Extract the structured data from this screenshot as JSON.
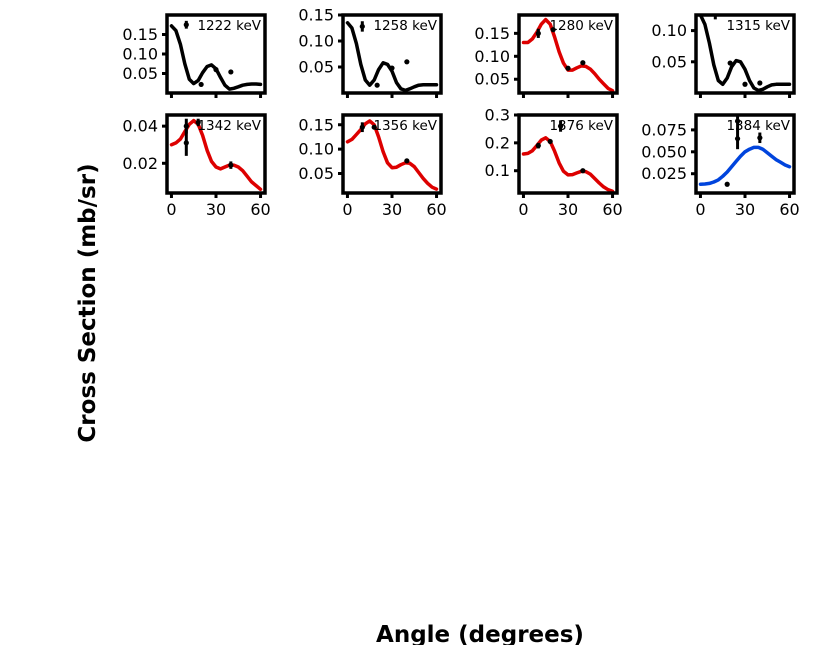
{
  "figure": {
    "xlabel": "Angle (degrees)",
    "ylabel": "Cross Section (mb/sr)"
  },
  "chart_data": [
    {
      "type": "line",
      "title": "1222 keV",
      "color": "#000000",
      "xlim": [
        -3,
        63
      ],
      "ylim": [
        0.0,
        0.2
      ],
      "yticks": [
        0.05,
        0.1,
        0.15
      ],
      "ytick_labels": [
        "0.05",
        "0.10",
        "0.15"
      ],
      "xticks": [
        0,
        30,
        60
      ],
      "xtick_labels": [],
      "curve": {
        "x": [
          0,
          3,
          6,
          9,
          12,
          15,
          18,
          21,
          24,
          27,
          30,
          33,
          36,
          39,
          42,
          45,
          48,
          51,
          54,
          57,
          60
        ],
        "y": [
          0.172,
          0.16,
          0.125,
          0.075,
          0.035,
          0.024,
          0.032,
          0.052,
          0.068,
          0.072,
          0.062,
          0.04,
          0.02,
          0.01,
          0.012,
          0.016,
          0.02,
          0.022,
          0.023,
          0.023,
          0.022
        ]
      },
      "points": [
        {
          "x": 10,
          "y": 0.175,
          "err": 0.01
        },
        {
          "x": 20,
          "y": 0.022,
          "err": 0.002
        },
        {
          "x": 30,
          "y": 0.06,
          "err": 0.002
        },
        {
          "x": 40,
          "y": 0.054,
          "err": 0.002
        }
      ]
    },
    {
      "type": "line",
      "title": "1258 keV",
      "color": "#000000",
      "xlim": [
        -3,
        63
      ],
      "ylim": [
        0.0,
        0.15
      ],
      "yticks": [
        0.05,
        0.1,
        0.15
      ],
      "ytick_labels": [
        "0.05",
        "0.10",
        "0.15"
      ],
      "xticks": [
        0,
        30,
        60
      ],
      "xtick_labels": [],
      "curve": {
        "x": [
          0,
          3,
          6,
          9,
          12,
          15,
          18,
          21,
          24,
          27,
          30,
          33,
          36,
          39,
          42,
          45,
          48,
          51,
          54,
          57,
          60
        ],
        "y": [
          0.135,
          0.125,
          0.095,
          0.055,
          0.025,
          0.015,
          0.025,
          0.045,
          0.058,
          0.055,
          0.042,
          0.02,
          0.008,
          0.005,
          0.008,
          0.012,
          0.015,
          0.016,
          0.016,
          0.016,
          0.016
        ]
      },
      "points": [
        {
          "x": 10,
          "y": 0.128,
          "err": 0.01
        },
        {
          "x": 20,
          "y": 0.015,
          "err": 0.002
        },
        {
          "x": 30,
          "y": 0.048,
          "err": 0.002
        },
        {
          "x": 40,
          "y": 0.06,
          "err": 0.002
        }
      ]
    },
    {
      "type": "line",
      "title": "1280 keV",
      "color": "#dd0000",
      "xlim": [
        -3,
        63
      ],
      "ylim": [
        0.02,
        0.19
      ],
      "yticks": [
        0.05,
        0.1,
        0.15
      ],
      "ytick_labels": [
        "0.05",
        "0.10",
        "0.15"
      ],
      "xticks": [
        0,
        30,
        60
      ],
      "xtick_labels": [],
      "curve": {
        "x": [
          0,
          3,
          6,
          9,
          12,
          15,
          18,
          21,
          24,
          27,
          30,
          33,
          36,
          39,
          42,
          45,
          48,
          51,
          54,
          57,
          60
        ],
        "y": [
          0.13,
          0.13,
          0.138,
          0.152,
          0.17,
          0.18,
          0.17,
          0.142,
          0.11,
          0.085,
          0.07,
          0.07,
          0.075,
          0.079,
          0.078,
          0.072,
          0.062,
          0.05,
          0.04,
          0.03,
          0.025
        ]
      },
      "points": [
        {
          "x": 10,
          "y": 0.15,
          "err": 0.01
        },
        {
          "x": 20,
          "y": 0.158,
          "err": 0.004
        },
        {
          "x": 30,
          "y": 0.074,
          "err": 0.003
        },
        {
          "x": 40,
          "y": 0.086,
          "err": 0.002
        }
      ]
    },
    {
      "type": "line",
      "title": "1315 keV",
      "color": "#000000",
      "xlim": [
        -3,
        63
      ],
      "ylim": [
        0.0,
        0.125
      ],
      "yticks": [
        0.05,
        0.1
      ],
      "ytick_labels": [
        "0.05",
        "0.10"
      ],
      "xticks": [
        0,
        30,
        60
      ],
      "xtick_labels": [],
      "curve": {
        "x": [
          0,
          3,
          6,
          9,
          12,
          15,
          18,
          21,
          24,
          27,
          30,
          33,
          36,
          39,
          42,
          45,
          48,
          51,
          54,
          57,
          60
        ],
        "y": [
          0.125,
          0.11,
          0.08,
          0.045,
          0.02,
          0.014,
          0.024,
          0.042,
          0.052,
          0.05,
          0.038,
          0.02,
          0.008,
          0.004,
          0.006,
          0.01,
          0.013,
          0.014,
          0.014,
          0.014,
          0.014
        ]
      },
      "points": [
        {
          "x": 10,
          "y": 0.128,
          "err": 0.01
        },
        {
          "x": 20,
          "y": 0.048,
          "err": 0.003
        },
        {
          "x": 30,
          "y": 0.014,
          "err": 0.002
        },
        {
          "x": 40,
          "y": 0.016,
          "err": 0.002
        }
      ]
    },
    {
      "type": "line",
      "title": "1342 keV",
      "color": "#dd0000",
      "xlim": [
        -3,
        63
      ],
      "ylim": [
        0.004,
        0.046
      ],
      "yticks": [
        0.02,
        0.04
      ],
      "ytick_labels": [
        "0.02",
        "0.04"
      ],
      "xticks": [
        0,
        30,
        60
      ],
      "xtick_labels": [
        "0",
        "30",
        "60"
      ],
      "curve": {
        "x": [
          0,
          3,
          6,
          9,
          12,
          15,
          18,
          21,
          24,
          27,
          30,
          33,
          36,
          39,
          42,
          45,
          48,
          51,
          54,
          57,
          60
        ],
        "y": [
          0.03,
          0.031,
          0.033,
          0.037,
          0.041,
          0.043,
          0.041,
          0.035,
          0.027,
          0.021,
          0.018,
          0.017,
          0.018,
          0.019,
          0.019,
          0.018,
          0.016,
          0.013,
          0.01,
          0.008,
          0.006
        ]
      },
      "points": [
        {
          "x": 10,
          "y": 0.031,
          "err": 0.007
        },
        {
          "x": 10,
          "y": 0.04,
          "err": 0.004
        },
        {
          "x": 18,
          "y": 0.042,
          "err": 0.002
        },
        {
          "x": 40,
          "y": 0.019,
          "err": 0.002
        }
      ]
    },
    {
      "type": "line",
      "title": "1356 keV",
      "color": "#dd0000",
      "xlim": [
        -3,
        63
      ],
      "ylim": [
        0.01,
        0.17
      ],
      "yticks": [
        0.05,
        0.1,
        0.15
      ],
      "ytick_labels": [
        "0.05",
        "0.10",
        "0.15"
      ],
      "xticks": [
        0,
        30,
        60
      ],
      "xtick_labels": [
        "0",
        "30",
        "60"
      ],
      "curve": {
        "x": [
          0,
          3,
          6,
          9,
          12,
          15,
          18,
          21,
          24,
          27,
          30,
          33,
          36,
          39,
          42,
          45,
          48,
          51,
          54,
          57,
          60
        ],
        "y": [
          0.115,
          0.12,
          0.13,
          0.14,
          0.152,
          0.158,
          0.15,
          0.125,
          0.095,
          0.072,
          0.062,
          0.063,
          0.068,
          0.072,
          0.071,
          0.064,
          0.052,
          0.04,
          0.03,
          0.022,
          0.018
        ]
      },
      "points": [
        {
          "x": 10,
          "y": 0.145,
          "err": 0.01
        },
        {
          "x": 18,
          "y": 0.145,
          "err": 0.004
        },
        {
          "x": 40,
          "y": 0.076,
          "err": 0.003
        }
      ]
    },
    {
      "type": "line",
      "title": "1376 keV",
      "color": "#dd0000",
      "xlim": [
        -3,
        63
      ],
      "ylim": [
        0.02,
        0.3
      ],
      "yticks": [
        0.1,
        0.2,
        0.3
      ],
      "ytick_labels": [
        "0.1",
        "0.2",
        "0.3"
      ],
      "xticks": [
        0,
        30,
        60
      ],
      "xtick_labels": [
        "0",
        "30",
        "60"
      ],
      "curve": {
        "x": [
          0,
          3,
          6,
          9,
          12,
          15,
          18,
          21,
          24,
          27,
          30,
          33,
          36,
          39,
          42,
          45,
          48,
          51,
          54,
          57,
          60
        ],
        "y": [
          0.16,
          0.162,
          0.172,
          0.19,
          0.21,
          0.218,
          0.205,
          0.17,
          0.128,
          0.098,
          0.085,
          0.086,
          0.092,
          0.098,
          0.097,
          0.088,
          0.072,
          0.056,
          0.042,
          0.032,
          0.026
        ]
      },
      "points": [
        {
          "x": 10,
          "y": 0.19,
          "err": 0.01
        },
        {
          "x": 18,
          "y": 0.205,
          "err": 0.006
        },
        {
          "x": 25,
          "y": 0.26,
          "err": 0.02
        },
        {
          "x": 40,
          "y": 0.1,
          "err": 0.004
        }
      ]
    },
    {
      "type": "line",
      "title": "1384 keV",
      "color": "#0044dd",
      "xlim": [
        -3,
        63
      ],
      "ylim": [
        0.003,
        0.092
      ],
      "yticks": [
        0.025,
        0.05,
        0.075
      ],
      "ytick_labels": [
        "0.025",
        "0.050",
        "0.075"
      ],
      "xticks": [
        0,
        30,
        60
      ],
      "xtick_labels": [
        "0",
        "30",
        "60"
      ],
      "curve": {
        "x": [
          0,
          3,
          6,
          9,
          12,
          15,
          18,
          21,
          24,
          27,
          30,
          33,
          36,
          39,
          42,
          45,
          48,
          51,
          54,
          57,
          60
        ],
        "y": [
          0.013,
          0.0133,
          0.014,
          0.0155,
          0.018,
          0.022,
          0.027,
          0.033,
          0.039,
          0.045,
          0.05,
          0.053,
          0.055,
          0.055,
          0.053,
          0.049,
          0.045,
          0.041,
          0.038,
          0.035,
          0.033
        ]
      },
      "points": [
        {
          "x": 18,
          "y": 0.013,
          "err": 0.002
        },
        {
          "x": 25,
          "y": 0.085,
          "err": 0.01
        },
        {
          "x": 25,
          "y": 0.065,
          "err": 0.012
        },
        {
          "x": 40,
          "y": 0.066,
          "err": 0.006
        }
      ]
    }
  ]
}
